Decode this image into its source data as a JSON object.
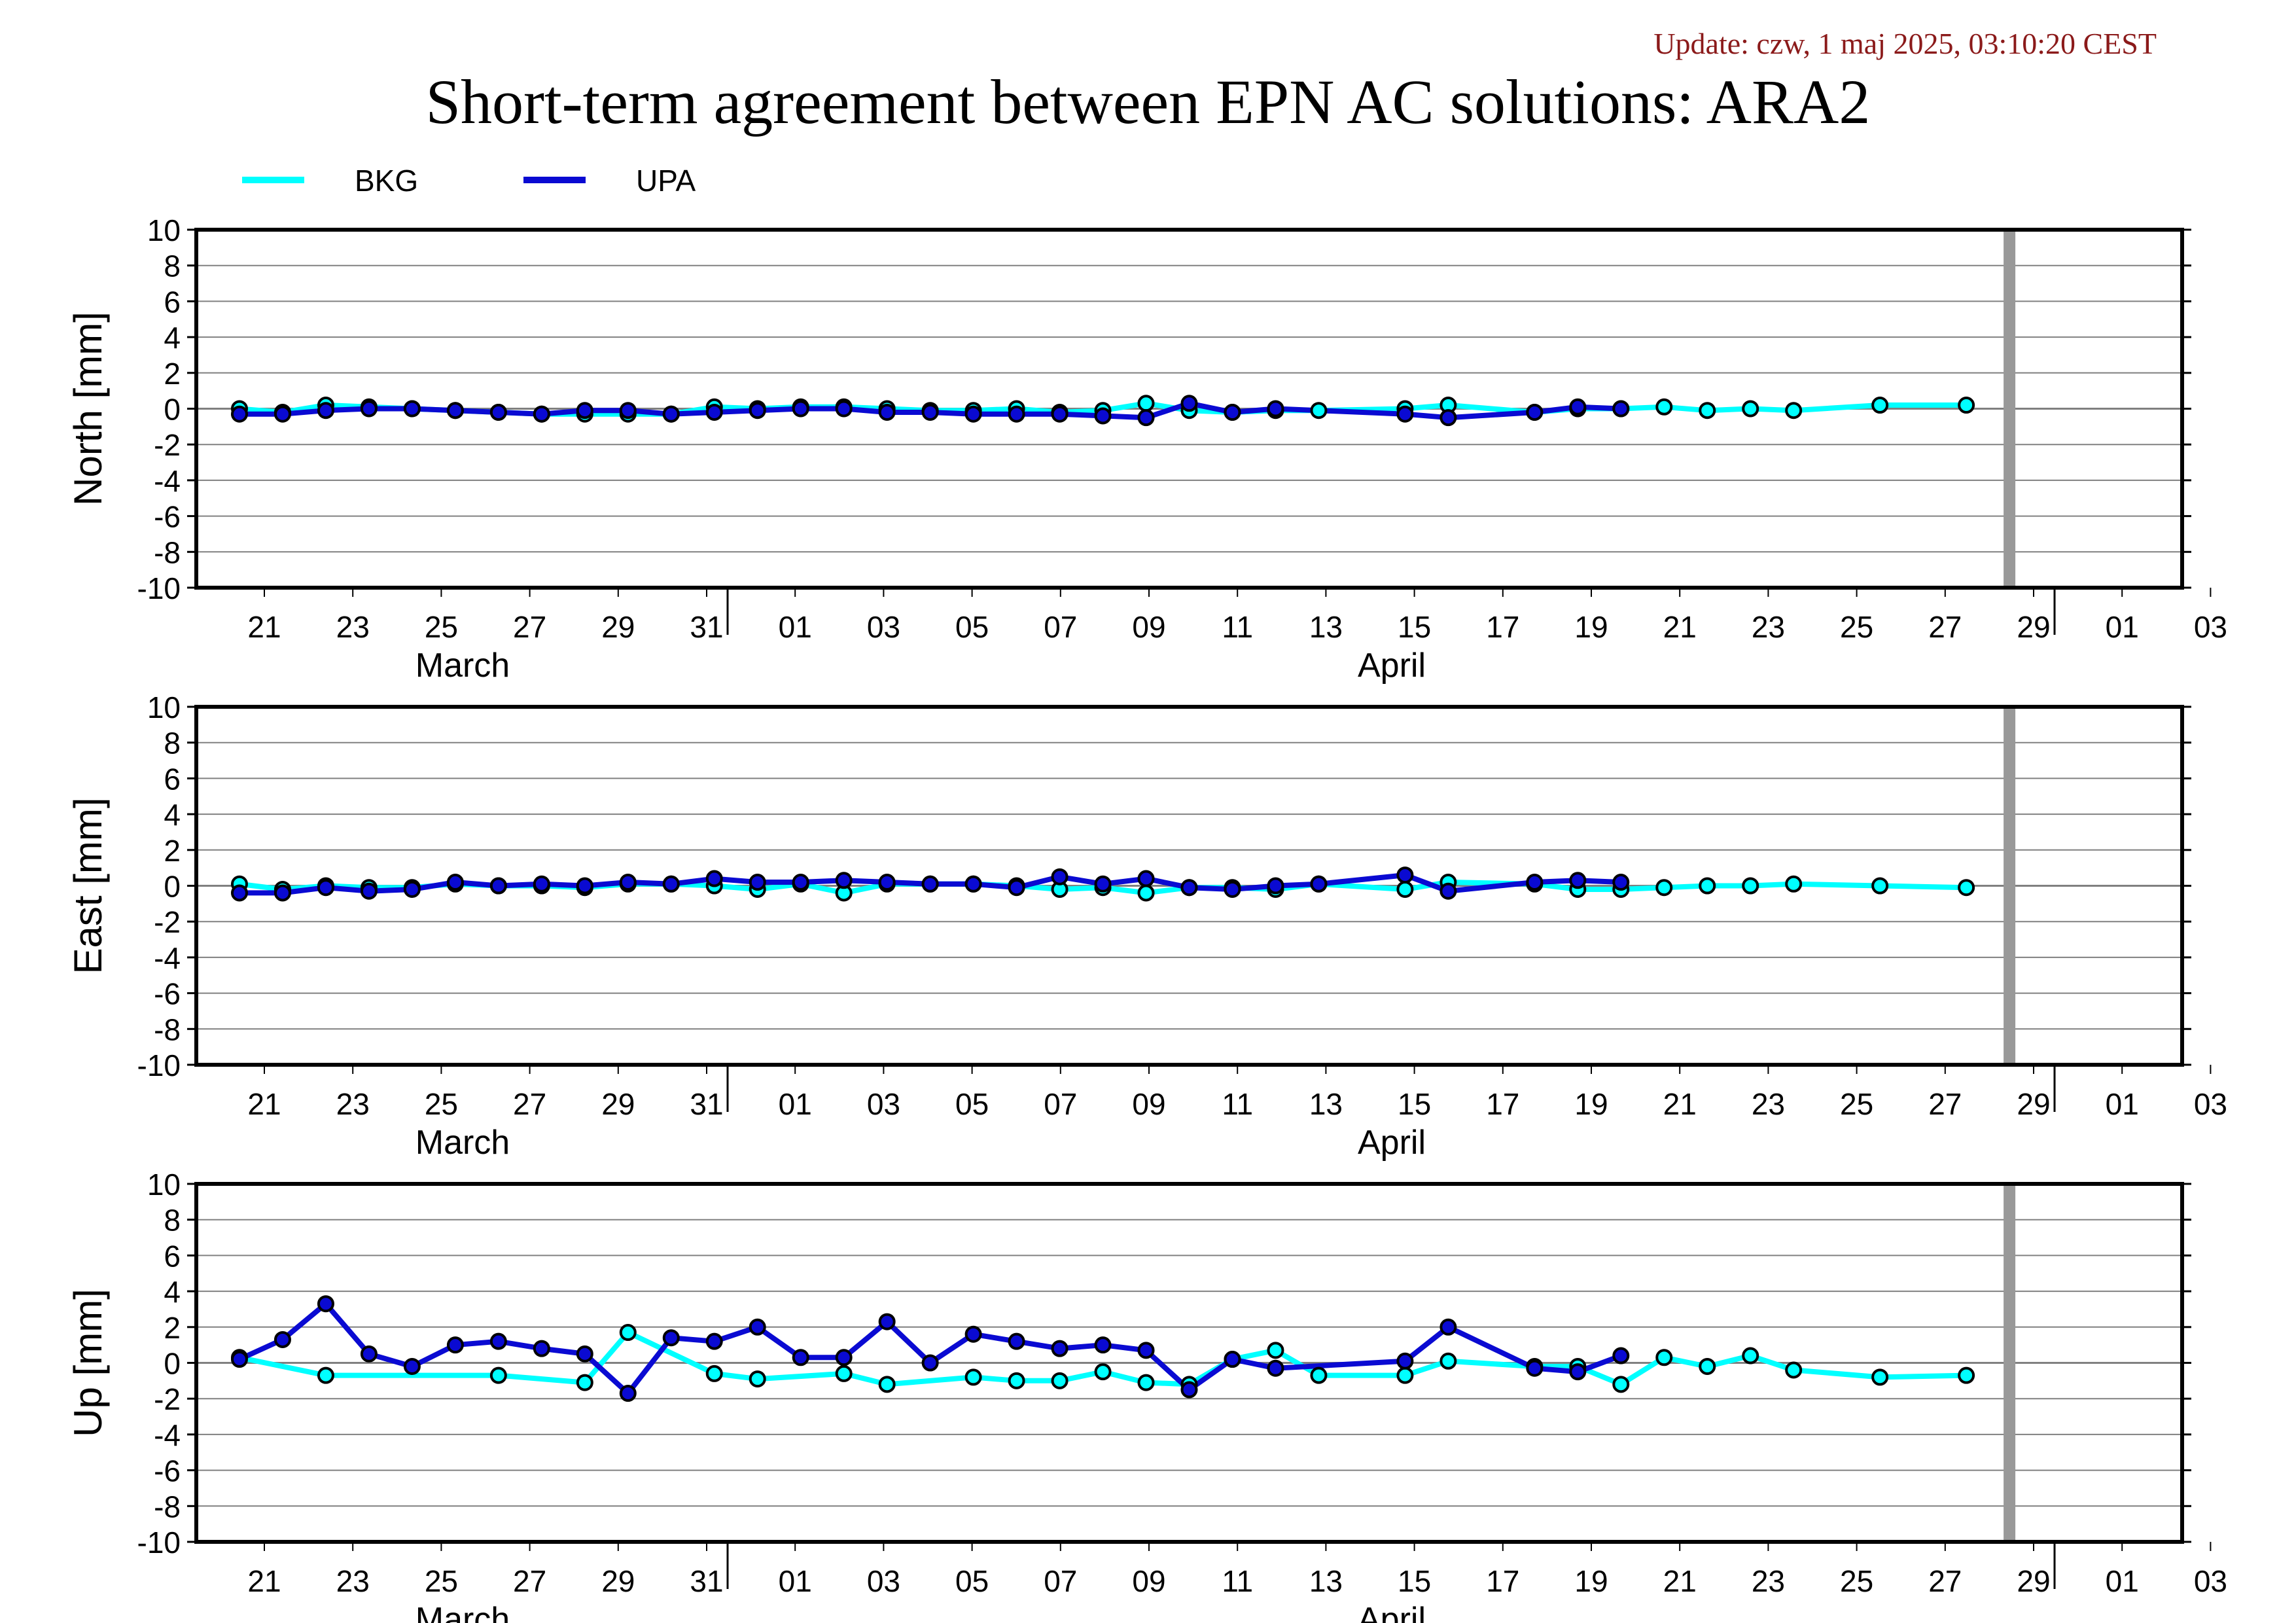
{
  "update_text": "Update: czw, 1 maj 2025, 03:10:20 CEST",
  "title": "Short-term agreement between EPN AC solutions: ARA2",
  "colors": {
    "BKG": "#00ffff",
    "UPA": "#0a0ad2",
    "marker_edge": "#000000",
    "today_bar": "#999999",
    "grid": "#808080"
  },
  "chart_data": [
    {
      "type": "line",
      "ylabel": "North [mm]",
      "ylim": [
        -10,
        10
      ],
      "yticks": [
        10,
        8,
        6,
        4,
        2,
        0,
        -2,
        -4,
        -6,
        -8,
        -10
      ],
      "xlim": [
        "2025-03-19",
        "2025-05-04"
      ],
      "x_tick_labels": [
        "21",
        "23",
        "25",
        "27",
        "29",
        "31",
        "01",
        "03",
        "05",
        "07",
        "09",
        "11",
        "13",
        "15",
        "17",
        "19",
        "21",
        "23",
        "25",
        "27",
        "29",
        "01",
        "03"
      ],
      "month_labels": [
        "March",
        "April"
      ],
      "today_marker": "2025-04-30",
      "grid": true,
      "legend": "top-left",
      "series": [
        {
          "name": "BKG",
          "points": [
            [
              "2025-03-20",
              0.0
            ],
            [
              "2025-03-21",
              -0.2
            ],
            [
              "2025-03-22",
              0.2
            ],
            [
              "2025-03-23",
              0.1
            ],
            [
              "2025-03-24",
              0.0
            ],
            [
              "2025-03-25",
              -0.1
            ],
            [
              "2025-03-26",
              -0.2
            ],
            [
              "2025-03-27",
              -0.3
            ],
            [
              "2025-03-28",
              -0.3
            ],
            [
              "2025-03-29",
              -0.3
            ],
            [
              "2025-03-30",
              -0.3
            ],
            [
              "2025-03-31",
              0.1
            ],
            [
              "2025-04-01",
              0.0
            ],
            [
              "2025-04-02",
              0.1
            ],
            [
              "2025-04-03",
              0.1
            ],
            [
              "2025-04-04",
              0.0
            ],
            [
              "2025-04-05",
              -0.1
            ],
            [
              "2025-04-06",
              -0.1
            ],
            [
              "2025-04-07",
              0.0
            ],
            [
              "2025-04-08",
              -0.2
            ],
            [
              "2025-04-09",
              -0.1
            ],
            [
              "2025-04-10",
              0.3
            ],
            [
              "2025-04-11",
              -0.1
            ],
            [
              "2025-04-12",
              -0.2
            ],
            [
              "2025-04-13",
              -0.1
            ],
            [
              "2025-04-14",
              -0.1
            ],
            [
              "2025-04-16",
              0.0
            ],
            [
              "2025-04-17",
              0.2
            ],
            [
              "2025-04-19",
              -0.2
            ],
            [
              "2025-04-20",
              0.0
            ],
            [
              "2025-04-21",
              0.0
            ],
            [
              "2025-04-22",
              0.1
            ],
            [
              "2025-04-23",
              -0.1
            ],
            [
              "2025-04-24",
              0.0
            ],
            [
              "2025-04-25",
              -0.1
            ],
            [
              "2025-04-27",
              0.2
            ],
            [
              "2025-04-29",
              0.2
            ]
          ]
        },
        {
          "name": "UPA",
          "points": [
            [
              "2025-03-20",
              -0.3
            ],
            [
              "2025-03-21",
              -0.3
            ],
            [
              "2025-03-22",
              -0.1
            ],
            [
              "2025-03-23",
              0.0
            ],
            [
              "2025-03-24",
              0.0
            ],
            [
              "2025-03-25",
              -0.1
            ],
            [
              "2025-03-26",
              -0.2
            ],
            [
              "2025-03-27",
              -0.3
            ],
            [
              "2025-03-28",
              -0.1
            ],
            [
              "2025-03-29",
              -0.1
            ],
            [
              "2025-03-30",
              -0.3
            ],
            [
              "2025-03-31",
              -0.2
            ],
            [
              "2025-04-01",
              -0.1
            ],
            [
              "2025-04-02",
              0.0
            ],
            [
              "2025-04-03",
              0.0
            ],
            [
              "2025-04-04",
              -0.2
            ],
            [
              "2025-04-05",
              -0.2
            ],
            [
              "2025-04-06",
              -0.3
            ],
            [
              "2025-04-07",
              -0.3
            ],
            [
              "2025-04-08",
              -0.3
            ],
            [
              "2025-04-09",
              -0.4
            ],
            [
              "2025-04-10",
              -0.5
            ],
            [
              "2025-04-11",
              0.3
            ],
            [
              "2025-04-12",
              -0.2
            ],
            [
              "2025-04-13",
              0.0
            ],
            [
              "2025-04-16",
              -0.3
            ],
            [
              "2025-04-17",
              -0.5
            ],
            [
              "2025-04-19",
              -0.2
            ],
            [
              "2025-04-20",
              0.1
            ],
            [
              "2025-04-21",
              0.0
            ]
          ]
        }
      ]
    },
    {
      "type": "line",
      "ylabel": "East [mm]",
      "ylim": [
        -10,
        10
      ],
      "yticks": [
        10,
        8,
        6,
        4,
        2,
        0,
        -2,
        -4,
        -6,
        -8,
        -10
      ],
      "xlim": [
        "2025-03-19",
        "2025-05-04"
      ],
      "x_tick_labels": [
        "21",
        "23",
        "25",
        "27",
        "29",
        "31",
        "01",
        "03",
        "05",
        "07",
        "09",
        "11",
        "13",
        "15",
        "17",
        "19",
        "21",
        "23",
        "25",
        "27",
        "29",
        "01",
        "03"
      ],
      "month_labels": [
        "March",
        "April"
      ],
      "today_marker": "2025-04-30",
      "grid": true,
      "series": [
        {
          "name": "BKG",
          "points": [
            [
              "2025-03-20",
              0.1
            ],
            [
              "2025-03-21",
              -0.2
            ],
            [
              "2025-03-22",
              0.0
            ],
            [
              "2025-03-23",
              -0.1
            ],
            [
              "2025-03-24",
              -0.1
            ],
            [
              "2025-03-25",
              0.1
            ],
            [
              "2025-03-26",
              0.0
            ],
            [
              "2025-03-27",
              0.0
            ],
            [
              "2025-03-28",
              -0.1
            ],
            [
              "2025-03-29",
              0.1
            ],
            [
              "2025-03-30",
              0.1
            ],
            [
              "2025-03-31",
              0.0
            ],
            [
              "2025-04-01",
              -0.2
            ],
            [
              "2025-04-02",
              0.1
            ],
            [
              "2025-04-03",
              -0.4
            ],
            [
              "2025-04-04",
              0.1
            ],
            [
              "2025-04-05",
              0.1
            ],
            [
              "2025-04-06",
              0.1
            ],
            [
              "2025-04-07",
              0.0
            ],
            [
              "2025-04-08",
              -0.2
            ],
            [
              "2025-04-09",
              -0.1
            ],
            [
              "2025-04-10",
              -0.4
            ],
            [
              "2025-04-11",
              -0.1
            ],
            [
              "2025-04-12",
              -0.1
            ],
            [
              "2025-04-13",
              -0.2
            ],
            [
              "2025-04-14",
              0.1
            ],
            [
              "2025-04-16",
              -0.2
            ],
            [
              "2025-04-17",
              0.2
            ],
            [
              "2025-04-19",
              0.1
            ],
            [
              "2025-04-20",
              -0.2
            ],
            [
              "2025-04-21",
              -0.2
            ],
            [
              "2025-04-22",
              -0.1
            ],
            [
              "2025-04-23",
              0.0
            ],
            [
              "2025-04-24",
              0.0
            ],
            [
              "2025-04-25",
              0.1
            ],
            [
              "2025-04-27",
              0.0
            ],
            [
              "2025-04-29",
              -0.1
            ]
          ]
        },
        {
          "name": "UPA",
          "points": [
            [
              "2025-03-20",
              -0.4
            ],
            [
              "2025-03-21",
              -0.4
            ],
            [
              "2025-03-22",
              -0.1
            ],
            [
              "2025-03-23",
              -0.3
            ],
            [
              "2025-03-24",
              -0.2
            ],
            [
              "2025-03-25",
              0.2
            ],
            [
              "2025-03-26",
              0.0
            ],
            [
              "2025-03-27",
              0.1
            ],
            [
              "2025-03-28",
              0.0
            ],
            [
              "2025-03-29",
              0.2
            ],
            [
              "2025-03-30",
              0.1
            ],
            [
              "2025-03-31",
              0.4
            ],
            [
              "2025-04-01",
              0.2
            ],
            [
              "2025-04-02",
              0.2
            ],
            [
              "2025-04-03",
              0.3
            ],
            [
              "2025-04-04",
              0.2
            ],
            [
              "2025-04-05",
              0.1
            ],
            [
              "2025-04-06",
              0.1
            ],
            [
              "2025-04-07",
              -0.1
            ],
            [
              "2025-04-08",
              0.5
            ],
            [
              "2025-04-09",
              0.1
            ],
            [
              "2025-04-10",
              0.4
            ],
            [
              "2025-04-11",
              -0.1
            ],
            [
              "2025-04-12",
              -0.2
            ],
            [
              "2025-04-13",
              0.0
            ],
            [
              "2025-04-14",
              0.1
            ],
            [
              "2025-04-16",
              0.6
            ],
            [
              "2025-04-17",
              -0.3
            ],
            [
              "2025-04-19",
              0.2
            ],
            [
              "2025-04-20",
              0.3
            ],
            [
              "2025-04-21",
              0.2
            ]
          ]
        }
      ]
    },
    {
      "type": "line",
      "ylabel": "Up [mm]",
      "ylim": [
        -10,
        10
      ],
      "yticks": [
        10,
        8,
        6,
        4,
        2,
        0,
        -2,
        -4,
        -6,
        -8,
        -10
      ],
      "xlim": [
        "2025-03-19",
        "2025-05-04"
      ],
      "x_tick_labels": [
        "21",
        "23",
        "25",
        "27",
        "29",
        "31",
        "01",
        "03",
        "05",
        "07",
        "09",
        "11",
        "13",
        "15",
        "17",
        "19",
        "21",
        "23",
        "25",
        "27",
        "29",
        "01",
        "03"
      ],
      "month_labels": [
        "March",
        "April"
      ],
      "today_marker": "2025-04-30",
      "grid": true,
      "series": [
        {
          "name": "BKG",
          "points": [
            [
              "2025-03-20",
              0.3
            ],
            [
              "2025-03-22",
              -0.7
            ],
            [
              "2025-03-26",
              -0.7
            ],
            [
              "2025-03-28",
              -1.1
            ],
            [
              "2025-03-29",
              1.7
            ],
            [
              "2025-03-31",
              -0.6
            ],
            [
              "2025-04-01",
              -0.9
            ],
            [
              "2025-04-03",
              -0.6
            ],
            [
              "2025-04-04",
              -1.2
            ],
            [
              "2025-04-06",
              -0.8
            ],
            [
              "2025-04-07",
              -1.0
            ],
            [
              "2025-04-08",
              -1.0
            ],
            [
              "2025-04-09",
              -0.5
            ],
            [
              "2025-04-10",
              -1.1
            ],
            [
              "2025-04-11",
              -1.2
            ],
            [
              "2025-04-12",
              0.2
            ],
            [
              "2025-04-13",
              0.7
            ],
            [
              "2025-04-14",
              -0.7
            ],
            [
              "2025-04-16",
              -0.7
            ],
            [
              "2025-04-17",
              0.1
            ],
            [
              "2025-04-19",
              -0.2
            ],
            [
              "2025-04-20",
              -0.2
            ],
            [
              "2025-04-21",
              -1.2
            ],
            [
              "2025-04-22",
              0.3
            ],
            [
              "2025-04-23",
              -0.2
            ],
            [
              "2025-04-24",
              0.4
            ],
            [
              "2025-04-25",
              -0.4
            ],
            [
              "2025-04-27",
              -0.8
            ],
            [
              "2025-04-29",
              -0.7
            ]
          ]
        },
        {
          "name": "UPA",
          "points": [
            [
              "2025-03-20",
              0.2
            ],
            [
              "2025-03-21",
              1.3
            ],
            [
              "2025-03-22",
              3.3
            ],
            [
              "2025-03-23",
              0.5
            ],
            [
              "2025-03-24",
              -0.2
            ],
            [
              "2025-03-25",
              1.0
            ],
            [
              "2025-03-26",
              1.2
            ],
            [
              "2025-03-27",
              0.8
            ],
            [
              "2025-03-28",
              0.5
            ],
            [
              "2025-03-29",
              -1.7
            ],
            [
              "2025-03-30",
              1.4
            ],
            [
              "2025-03-31",
              1.2
            ],
            [
              "2025-04-01",
              2.0
            ],
            [
              "2025-04-02",
              0.3
            ],
            [
              "2025-04-03",
              0.3
            ],
            [
              "2025-04-04",
              2.3
            ],
            [
              "2025-04-05",
              0.0
            ],
            [
              "2025-04-06",
              1.6
            ],
            [
              "2025-04-07",
              1.2
            ],
            [
              "2025-04-08",
              0.8
            ],
            [
              "2025-04-09",
              1.0
            ],
            [
              "2025-04-10",
              0.7
            ],
            [
              "2025-04-11",
              -1.5
            ],
            [
              "2025-04-12",
              0.2
            ],
            [
              "2025-04-13",
              -0.3
            ],
            [
              "2025-04-16",
              0.1
            ],
            [
              "2025-04-17",
              2.0
            ],
            [
              "2025-04-19",
              -0.3
            ],
            [
              "2025-04-20",
              -0.5
            ],
            [
              "2025-04-21",
              0.4
            ]
          ]
        }
      ]
    }
  ]
}
